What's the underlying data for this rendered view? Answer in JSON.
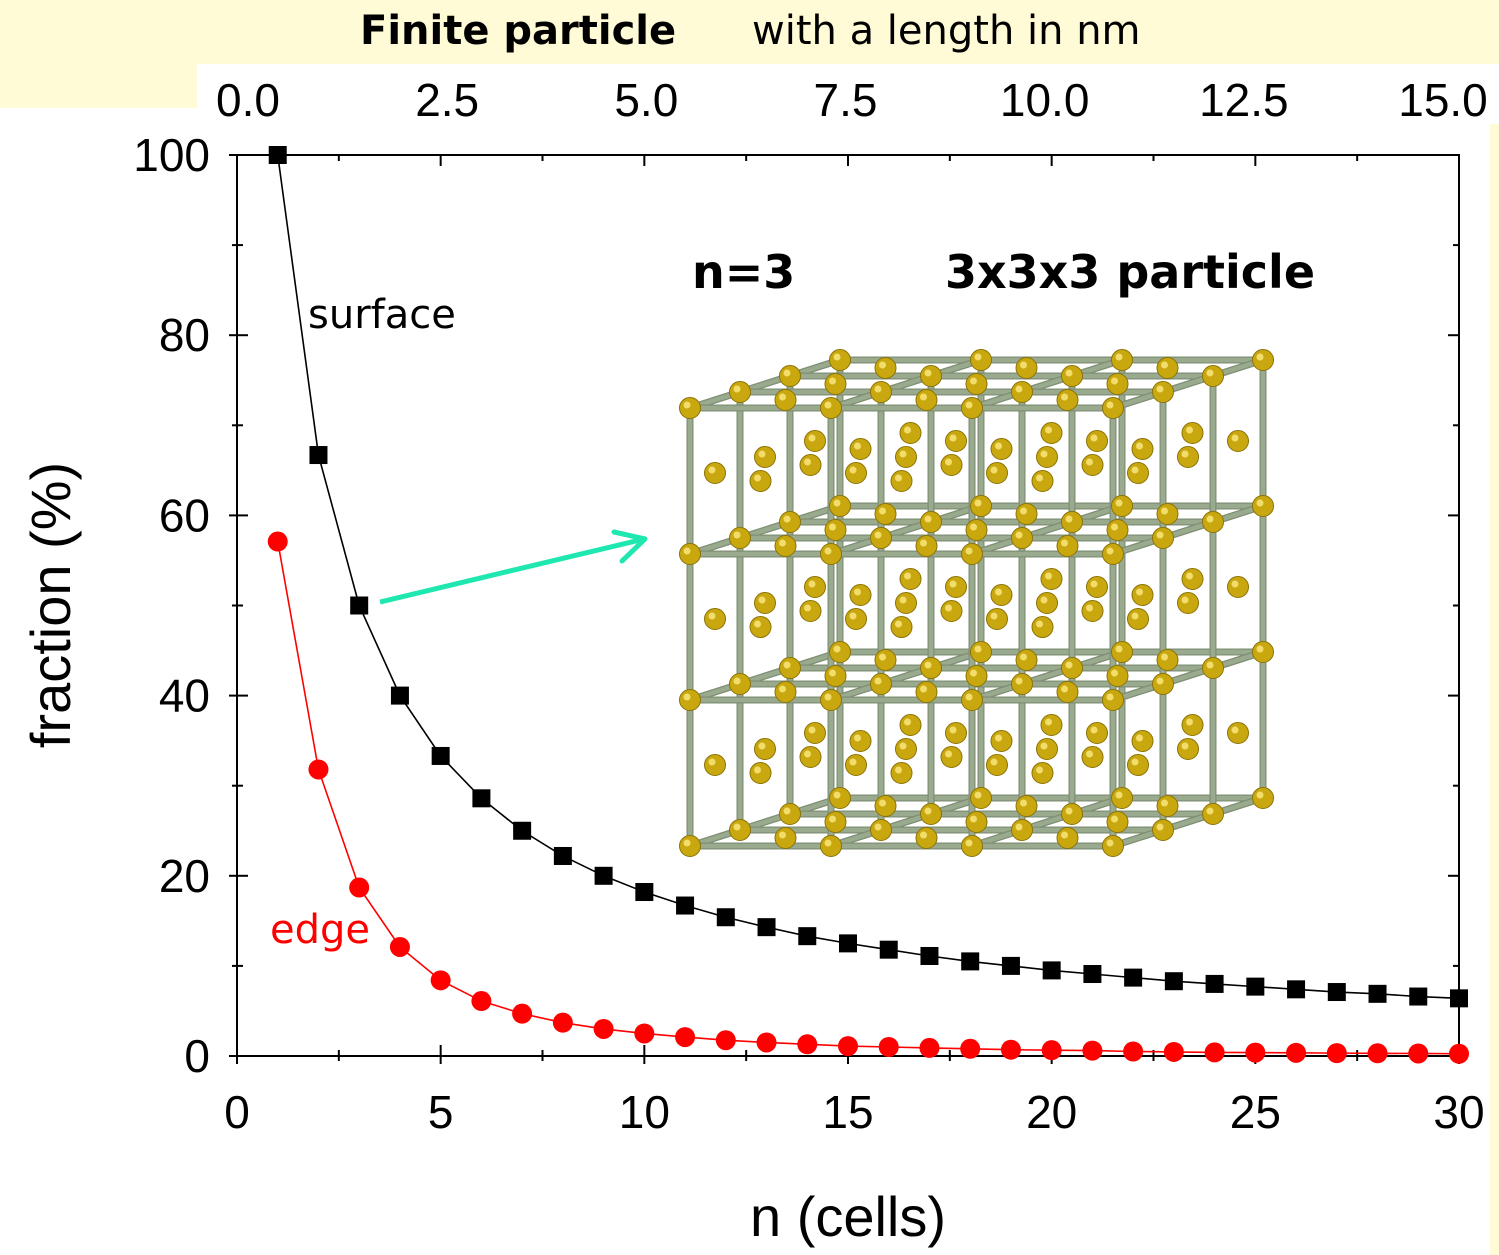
{
  "header": {
    "title_bold": "Finite particle",
    "title_rest": "with a length in nm"
  },
  "inset": {
    "label_n": "n=3",
    "label_particle": "3x3x3 particle",
    "grid_cells": 3,
    "colors": {
      "atom": "#c9a80f",
      "bond": "#9aaa8e",
      "arrow": "#1ee8b0"
    }
  },
  "chart_data": {
    "type": "scatter",
    "title": "",
    "xlabel": "n (cells)",
    "ylabel": "fraction (%)",
    "xlim": [
      0,
      30
    ],
    "ylim": [
      0,
      100
    ],
    "x_ticks": [
      "0",
      "5",
      "10",
      "15",
      "20",
      "25",
      "30"
    ],
    "y_ticks": [
      "0",
      "20",
      "40",
      "60",
      "80",
      "100"
    ],
    "top_axis": {
      "label": "",
      "ticks": [
        "0.0",
        "2.5",
        "5.0",
        "7.5",
        "10.0",
        "12.5",
        "15.0"
      ],
      "range_nm": [
        0,
        15
      ]
    },
    "series": [
      {
        "name": "surface",
        "color": "#000000",
        "marker": "square",
        "x": [
          1,
          2,
          3,
          4,
          5,
          6,
          7,
          8,
          9,
          10,
          11,
          12,
          13,
          14,
          15,
          16,
          17,
          18,
          19,
          20,
          21,
          22,
          23,
          24,
          25,
          26,
          27,
          28,
          29,
          30
        ],
        "values": [
          100,
          66.7,
          50,
          40,
          33.3,
          28.6,
          25,
          22.2,
          20,
          18.2,
          16.7,
          15.4,
          14.3,
          13.3,
          12.5,
          11.8,
          11.1,
          10.5,
          10,
          9.5,
          9.1,
          8.7,
          8.3,
          8,
          7.7,
          7.4,
          7.1,
          6.9,
          6.6,
          6.4
        ]
      },
      {
        "name": "edge",
        "color": "#ff0000",
        "marker": "circle",
        "x": [
          1,
          2,
          3,
          4,
          5,
          6,
          7,
          8,
          9,
          10,
          11,
          12,
          13,
          14,
          15,
          16,
          17,
          18,
          19,
          20,
          21,
          22,
          23,
          24,
          25,
          26,
          27,
          28,
          29,
          30
        ],
        "values": [
          57.1,
          31.8,
          18.7,
          12.1,
          8.4,
          6.1,
          4.7,
          3.7,
          3.0,
          2.5,
          2.1,
          1.75,
          1.5,
          1.3,
          1.1,
          1.0,
          0.9,
          0.8,
          0.7,
          0.65,
          0.6,
          0.5,
          0.45,
          0.4,
          0.38,
          0.35,
          0.32,
          0.3,
          0.28,
          0.25
        ]
      }
    ],
    "grid": false,
    "legend": "none"
  }
}
